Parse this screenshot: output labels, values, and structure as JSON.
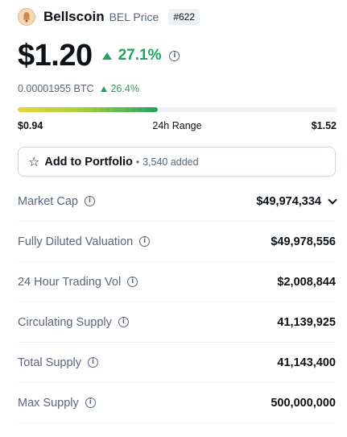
{
  "coin": {
    "logo_icon": "bellscoin-logo-icon",
    "name": "Bellscoin",
    "symbol_label": "BEL Price",
    "rank": "#622"
  },
  "price": {
    "value": "$1.20",
    "change_24h": "27.1%",
    "change_color": "#22a35f"
  },
  "btc": {
    "price": "0.00001955 BTC",
    "change": "26.4%"
  },
  "range": {
    "low": "$0.94",
    "label": "24h Range",
    "high": "$1.52",
    "fill_fraction": 0.44
  },
  "portfolio": {
    "label": "Add to Portfolio",
    "separator": "•",
    "count": "3,540 added"
  },
  "stats": [
    {
      "label": "Market Cap",
      "value": "$49,974,334",
      "has_dropdown": true
    },
    {
      "label": "Fully Diluted Valuation",
      "value": "$49,978,556"
    },
    {
      "label": "24 Hour Trading Vol",
      "value": "$2,008,844"
    },
    {
      "label": "Circulating Supply",
      "value": "41,139,925"
    },
    {
      "label": "Total Supply",
      "value": "41,143,400"
    },
    {
      "label": "Max Supply",
      "value": "500,000,000"
    }
  ]
}
